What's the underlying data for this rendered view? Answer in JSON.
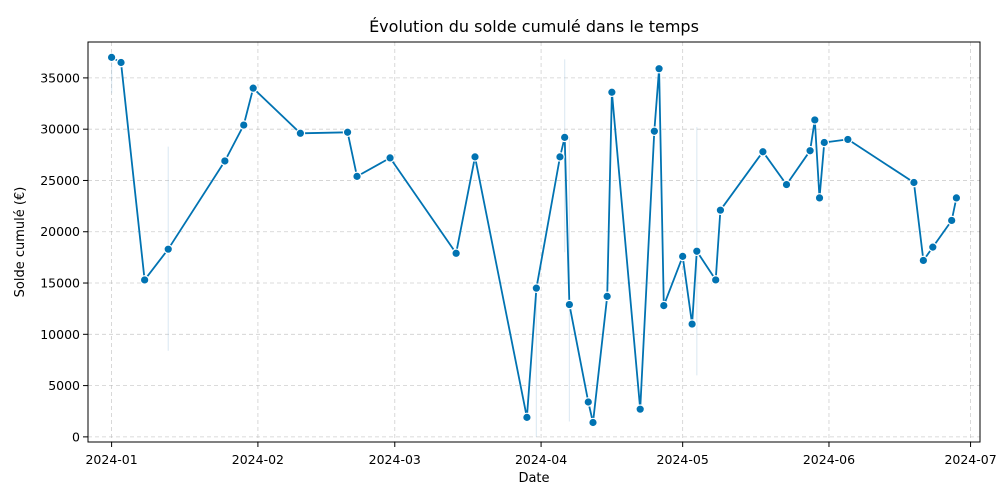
{
  "chart_data": {
    "type": "line",
    "title": "Évolution du solde cumulé dans le temps",
    "xlabel": "Date",
    "ylabel": "Solde cumulé (€)",
    "x_tick_labels": [
      "2024-01",
      "2024-02",
      "2024-03",
      "2024-04",
      "2024-05",
      "2024-06",
      "2024-07"
    ],
    "x_ticks": [
      "2024-01-01",
      "2024-02-01",
      "2024-03-01",
      "2024-04-01",
      "2024-05-01",
      "2024-06-01",
      "2024-07-01"
    ],
    "xlim": [
      "2023-12-27",
      "2024-07-03"
    ],
    "y_ticks": [
      0,
      5000,
      10000,
      15000,
      20000,
      25000,
      30000,
      35000
    ],
    "y_tick_labels": [
      "0",
      "5000",
      "10000",
      "15000",
      "20000",
      "25000",
      "30000",
      "35000"
    ],
    "ylim": [
      -500,
      38500
    ],
    "grid": true,
    "colors": {
      "line": "#0173b2",
      "band": "#a6c8e0"
    },
    "series": [
      {
        "x": [
          "2024-01-01",
          "2024-01-03",
          "2024-01-08",
          "2024-01-13",
          "2024-01-25",
          "2024-01-29",
          "2024-01-31",
          "2024-02-10",
          "2024-02-20",
          "2024-02-22",
          "2024-02-29",
          "2024-03-14",
          "2024-03-18",
          "2024-03-29",
          "2024-03-31",
          "2024-04-05",
          "2024-04-06",
          "2024-04-07",
          "2024-04-11",
          "2024-04-12",
          "2024-04-15",
          "2024-04-16",
          "2024-04-22",
          "2024-04-25",
          "2024-04-26",
          "2024-04-27",
          "2024-05-01",
          "2024-05-03",
          "2024-05-04",
          "2024-05-08",
          "2024-05-09",
          "2024-05-18",
          "2024-05-23",
          "2024-05-28",
          "2024-05-29",
          "2024-05-30",
          "2024-05-31",
          "2024-06-05",
          "2024-06-19",
          "2024-06-21",
          "2024-06-23",
          "2024-06-27",
          "2024-06-28"
        ],
        "y": [
          37000,
          36500,
          15300,
          18300,
          26900,
          30400,
          34000,
          29600,
          29700,
          25400,
          27200,
          17900,
          27300,
          1900,
          14500,
          27300,
          29200,
          12900,
          3400,
          1400,
          13700,
          33600,
          2700,
          29800,
          35900,
          12800,
          17600,
          11000,
          18100,
          15300,
          22100,
          27800,
          24600,
          27900,
          30900,
          23300,
          28700,
          29000,
          24800,
          17200,
          18500,
          21100,
          23300
        ]
      }
    ],
    "error_bands": [
      {
        "x": "2024-01-01",
        "low": 33500,
        "high": 37000
      },
      {
        "x": "2024-01-13",
        "low": 8400,
        "high": 28300
      },
      {
        "x": "2024-03-31",
        "low": 0,
        "high": 14500
      },
      {
        "x": "2024-04-06",
        "low": 18000,
        "high": 36800
      },
      {
        "x": "2024-04-07",
        "low": 1500,
        "high": 29200
      },
      {
        "x": "2024-05-04",
        "low": 6000,
        "high": 30200
      }
    ]
  }
}
